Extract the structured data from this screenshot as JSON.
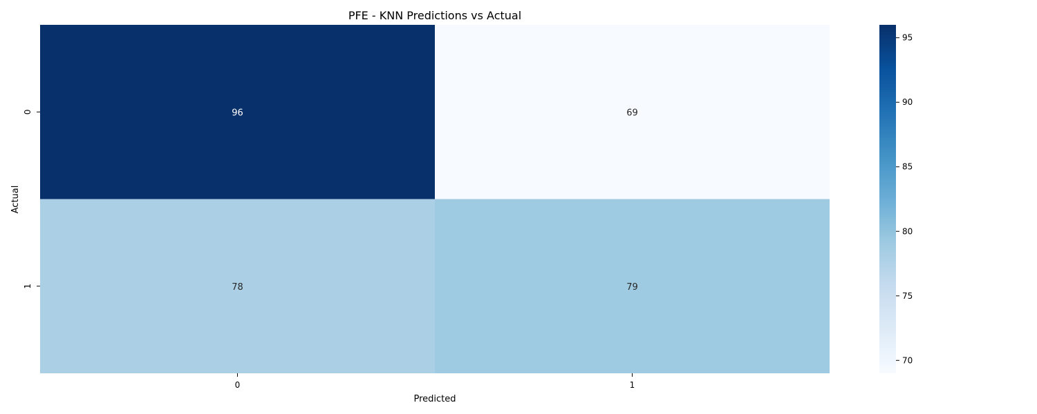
{
  "chart_data": {
    "type": "heatmap",
    "title": "PFE - KNN Predictions vs Actual",
    "xlabel": "Predicted",
    "ylabel": "Actual",
    "x_categories": [
      "0",
      "1"
    ],
    "y_categories": [
      "0",
      "1"
    ],
    "values": [
      [
        96,
        69
      ],
      [
        78,
        79
      ]
    ],
    "colormap": "Blues",
    "color_range": [
      69,
      96
    ],
    "colorbar_ticks": [
      70,
      75,
      80,
      85,
      90,
      95
    ],
    "annotated": true,
    "grid": false
  }
}
